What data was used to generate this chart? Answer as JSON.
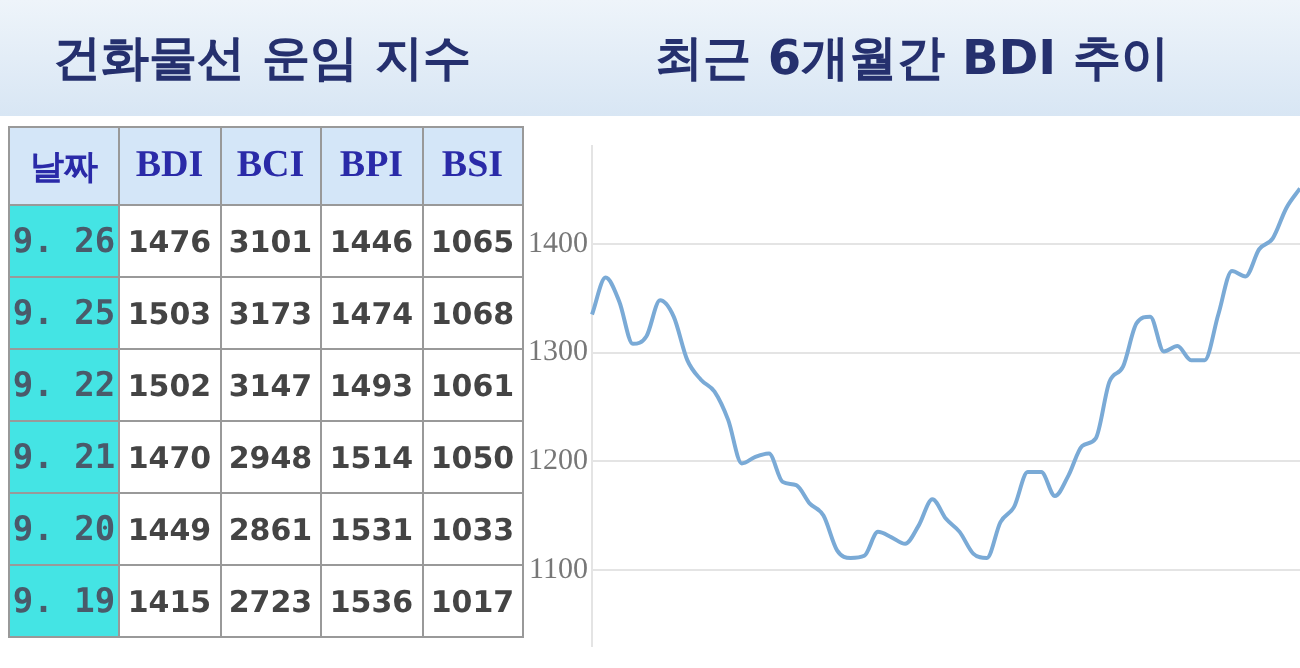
{
  "chart_data": [
    {
      "type": "heatmap",
      "data_labels": true,
      "title": "건화물선 운임 지수",
      "ylabel": "날짜",
      "categories": [
        "BDI",
        "BCI",
        "BPI",
        "BSI"
      ],
      "y_categories": [
        "9. 26",
        "9. 25",
        "9. 22",
        "9. 21",
        "9. 20",
        "9. 19"
      ],
      "cells": [
        [
          1476,
          3101,
          1446,
          1065
        ],
        [
          1503,
          3173,
          1474,
          1068
        ],
        [
          1502,
          3147,
          1493,
          1061
        ],
        [
          1470,
          2948,
          1514,
          1050
        ],
        [
          1449,
          2861,
          1531,
          1033
        ],
        [
          1415,
          2723,
          1536,
          1017
        ]
      ]
    },
    {
      "type": "line",
      "title": "최근 6개월간 BDI 추이",
      "categories": [
        null,
        null,
        null,
        null,
        null,
        null,
        null,
        null,
        null,
        null,
        null,
        null,
        null,
        null,
        null,
        null,
        null,
        null,
        null,
        null,
        null,
        null,
        null,
        null,
        null,
        null,
        null,
        null,
        null,
        null,
        null,
        null,
        null,
        null,
        null,
        null,
        null,
        null,
        null,
        null,
        null,
        null,
        null,
        null,
        null,
        null,
        null,
        null,
        null,
        null,
        null,
        null,
        null
      ],
      "series": [
        {
          "color": "#7aaad6",
          "values": [
            1335,
            1369,
            1347,
            1308,
            1315,
            1348,
            1333,
            1293,
            1275,
            1264,
            1238,
            1198,
            1204,
            1207,
            1181,
            1178,
            1161,
            1150,
            1118,
            1111,
            1113,
            1135,
            1130,
            1124,
            1141,
            1165,
            1147,
            1135,
            1115,
            1111,
            1144,
            1158,
            1190,
            1190,
            1168,
            1187,
            1214,
            1221,
            1273,
            1287,
            1327,
            1333,
            1301,
            1306,
            1293,
            1293,
            1335,
            1375,
            1370,
            1395,
            1405,
            1433,
            1451
          ]
        }
      ],
      "ylim": [
        1030,
        1490
      ],
      "yticks": [
        1100,
        1200,
        1300,
        1400
      ],
      "grid": "y",
      "tick_labels": "y"
    }
  ]
}
